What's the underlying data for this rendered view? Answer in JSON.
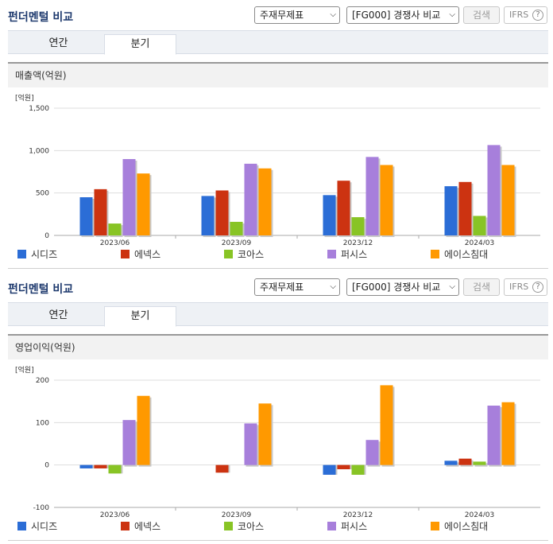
{
  "sections": [
    {
      "title": "펀더멘털 비교",
      "select_type": "주재무제표",
      "select_group": "[FG000] 경쟁사 비교",
      "search_label": "검색",
      "ifrs_label": "IFRS",
      "help_glyph": "?",
      "tabs": [
        {
          "label": "연간"
        },
        {
          "label": "분기"
        }
      ],
      "panel_title": "매출액(억원)",
      "chart_data": {
        "type": "bar",
        "unit_label": "[억원]",
        "categories": [
          "2023/06",
          "2023/09",
          "2023/12",
          "2024/03"
        ],
        "ylim": [
          0,
          1500
        ],
        "yticks": [
          0,
          500,
          1000,
          1500
        ],
        "ytick_labels": [
          "0",
          "500",
          "1,000",
          "1,500"
        ],
        "grid": true,
        "legend_position": "bottom",
        "series": [
          {
            "name": "시디즈",
            "color": "#2b6dd6",
            "values": [
              450,
              465,
              475,
              580
            ]
          },
          {
            "name": "에넥스",
            "color": "#cc3311",
            "values": [
              545,
              530,
              645,
              630
            ]
          },
          {
            "name": "코아스",
            "color": "#88c425",
            "values": [
              140,
              160,
              215,
              230
            ]
          },
          {
            "name": "퍼시스",
            "color": "#a77fdb",
            "values": [
              900,
              845,
              925,
              1065
            ]
          },
          {
            "name": "에이스침대",
            "color": "#ff9900",
            "values": [
              730,
              790,
              830,
              830
            ]
          }
        ]
      }
    },
    {
      "title": "펀더멘털 비교",
      "select_type": "주재무제표",
      "select_group": "[FG000] 경쟁사 비교",
      "search_label": "검색",
      "ifrs_label": "IFRS",
      "help_glyph": "?",
      "tabs": [
        {
          "label": "연간"
        },
        {
          "label": "분기"
        }
      ],
      "panel_title": "영업이익(억원)",
      "chart_data": {
        "type": "bar",
        "unit_label": "[억원]",
        "categories": [
          "2023/06",
          "2023/09",
          "2023/12",
          "2024/03"
        ],
        "ylim": [
          -100,
          200
        ],
        "yticks": [
          -100,
          0,
          100,
          200
        ],
        "ytick_labels": [
          "-100",
          "0",
          "100",
          "200"
        ],
        "grid": true,
        "legend_position": "bottom",
        "series": [
          {
            "name": "시디즈",
            "color": "#2b6dd6",
            "values": [
              -8,
              0,
              -23,
              10
            ]
          },
          {
            "name": "에넥스",
            "color": "#cc3311",
            "values": [
              -8,
              -18,
              -10,
              15
            ]
          },
          {
            "name": "코아스",
            "color": "#88c425",
            "values": [
              -20,
              0,
              -23,
              8
            ]
          },
          {
            "name": "퍼시스",
            "color": "#a77fdb",
            "values": [
              106,
              98,
              59,
              140
            ]
          },
          {
            "name": "에이스침대",
            "color": "#ff9900",
            "values": [
              163,
              145,
              188,
              148
            ]
          }
        ]
      }
    }
  ]
}
